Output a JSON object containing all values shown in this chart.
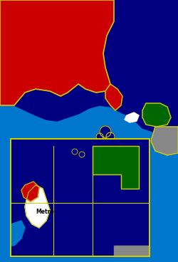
{
  "bg_ocean_color": "#0077cc",
  "bg_dark_navy": "#000080",
  "alp_red": "#cc0000",
  "independent_white": "#ffffff",
  "national_green": "#006600",
  "gray_color": "#888888",
  "outline_color": "#cccc00",
  "inset_box_color": "#cccc00",
  "figsize": [
    2.5,
    3.68
  ],
  "dpi": 100,
  "metro_label": "Metro"
}
